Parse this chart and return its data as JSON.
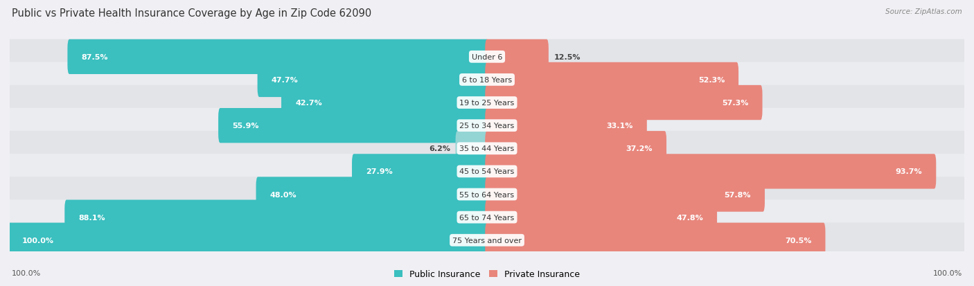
{
  "title": "Public vs Private Health Insurance Coverage by Age in Zip Code 62090",
  "source": "Source: ZipAtlas.com",
  "categories": [
    "Under 6",
    "6 to 18 Years",
    "19 to 25 Years",
    "25 to 34 Years",
    "35 to 44 Years",
    "45 to 54 Years",
    "55 to 64 Years",
    "65 to 74 Years",
    "75 Years and over"
  ],
  "public_values": [
    87.5,
    47.7,
    42.7,
    55.9,
    6.2,
    27.9,
    48.0,
    88.1,
    100.0
  ],
  "private_values": [
    12.5,
    52.3,
    57.3,
    33.1,
    37.2,
    93.7,
    57.8,
    47.8,
    70.5
  ],
  "public_color": "#3bbfbf",
  "private_color": "#e8867c",
  "public_color_light": "#93d4d4",
  "row_bg_colors": [
    "#e2e4e8",
    "#eaecf0",
    "#e2e4e8",
    "#eaecf0",
    "#e2e4e8",
    "#eaecf0",
    "#e2e4e8",
    "#eaecf0",
    "#e2e4e8"
  ],
  "bg_color": "#f0f0f4",
  "title_fontsize": 10.5,
  "label_fontsize": 8,
  "value_fontsize": 8
}
